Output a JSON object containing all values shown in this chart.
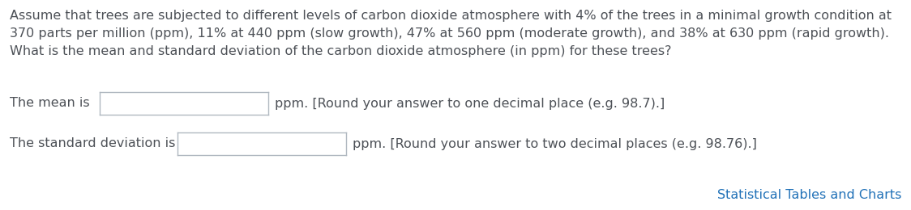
{
  "paragraph_text": "Assume that trees are subjected to different levels of carbon dioxide atmosphere with 4% of the trees in a minimal growth condition at\n370 parts per million (ppm), 11% at 440 ppm (slow growth), 47% at 560 ppm (moderate growth), and 38% at 630 ppm (rapid growth).\nWhat is the mean and standard deviation of the carbon dioxide atmosphere (in ppm) for these trees?",
  "line1_prefix": "The mean is ",
  "line1_suffix": "ppm. [Round your answer to one decimal place (e.g. 98.7).]",
  "line2_prefix": "The standard deviation is ",
  "line2_suffix": "ppm. [Round your answer to two decimal places (e.g. 98.76).]",
  "link_text": "Statistical Tables and Charts",
  "text_color": "#4d5157",
  "link_color": "#2272b8",
  "box_border_color": "#b0b8c0",
  "info_btn_color": "#2196c9",
  "info_btn_text_color": "#ffffff",
  "background_color": "#ffffff",
  "font_size": 11.5
}
